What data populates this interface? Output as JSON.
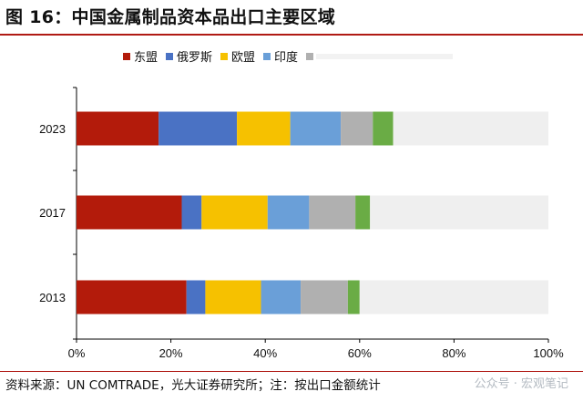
{
  "title": "图 16：中国金属制品资本品出口主要区域",
  "source": "资料来源：UN COMTRADE，光大证券研究所；注：按出口金额统计",
  "watermark": "公众号 · 宏观笔记",
  "chart_data": {
    "type": "bar",
    "orientation": "horizontal",
    "stacked": true,
    "categories": [
      "2023",
      "2017",
      "2013"
    ],
    "x_ticks": [
      "0%",
      "20%",
      "40%",
      "60%",
      "80%",
      "100%"
    ],
    "xlim": [
      0,
      100
    ],
    "legend_position": "top",
    "series": [
      {
        "name": "东盟",
        "color": "#b31b0b",
        "values": [
          17.4,
          22.3,
          23.3
        ]
      },
      {
        "name": "俄罗斯",
        "color": "#4a72c4",
        "values": [
          16.6,
          4.2,
          4.0
        ]
      },
      {
        "name": "欧盟",
        "color": "#f6c100",
        "values": [
          11.3,
          14.0,
          11.8
        ]
      },
      {
        "name": "印度",
        "color": "#6a9fd8",
        "values": [
          10.7,
          8.8,
          8.4
        ]
      },
      {
        "name": "",
        "color": "#b0b0b0",
        "values": [
          6.8,
          9.8,
          10.0
        ]
      },
      {
        "name": "",
        "color": "#6aac45",
        "values": [
          4.3,
          3.1,
          2.5
        ]
      },
      {
        "name": "",
        "color": "#efefef",
        "values": [
          32.9,
          37.8,
          40.0
        ]
      }
    ]
  }
}
